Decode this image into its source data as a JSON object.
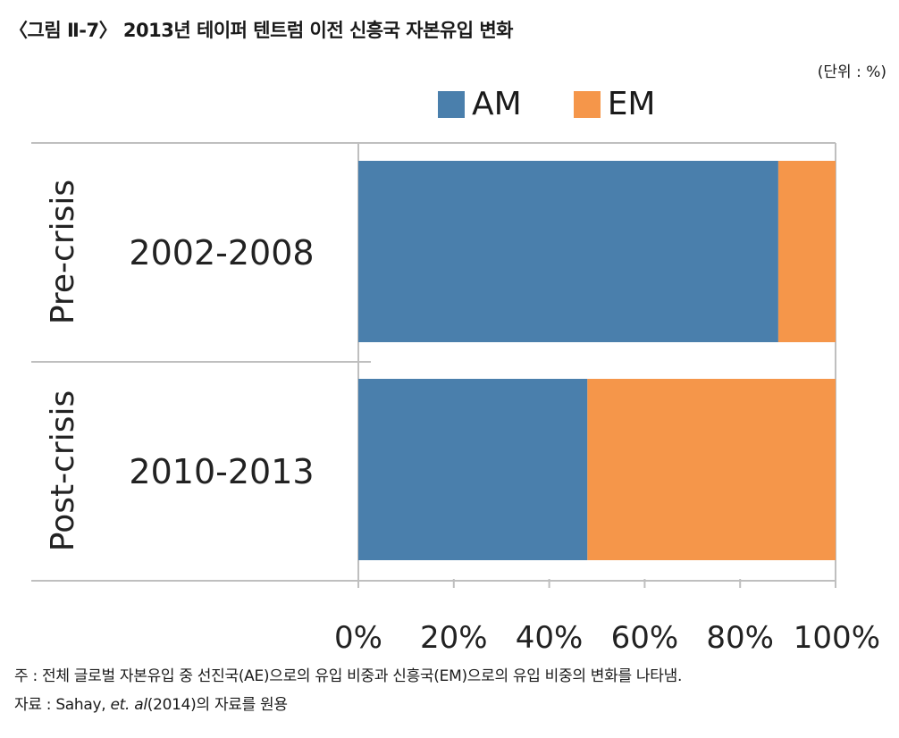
{
  "figure": {
    "title": "〈그림 Ⅱ-7〉 2013년 테이퍼 텐트럼 이전 신흥국 자본유입 변화",
    "unit": "(단위 : %)"
  },
  "chart_data": {
    "type": "bar",
    "orientation": "horizontal",
    "stacked": true,
    "groups": [
      {
        "period": "Pre-crisis",
        "label": "2002-2008"
      },
      {
        "period": "Post-crisis",
        "label": "2010-2013"
      }
    ],
    "series": [
      {
        "name": "AM",
        "color": "#4a7fac",
        "values": [
          88,
          48
        ]
      },
      {
        "name": "EM",
        "color": "#f5964a",
        "values": [
          12,
          52
        ]
      }
    ],
    "xticks": [
      "0%",
      "20%",
      "40%",
      "60%",
      "80%",
      "100%"
    ],
    "xlim": [
      0,
      100
    ],
    "legend_position": "top"
  },
  "notes": {
    "note_prefix": "주 : ",
    "note_text": "전체 글로벌 자본유입 중 선진국(AE)으로의 유입 비중과 신흥국(EM)으로의 유입 비중의 변화를 나타냄.",
    "source_prefix": "자료 : Sahay, ",
    "source_etal": "et. al",
    "source_suffix": "(2014)의 자료를 원용"
  }
}
